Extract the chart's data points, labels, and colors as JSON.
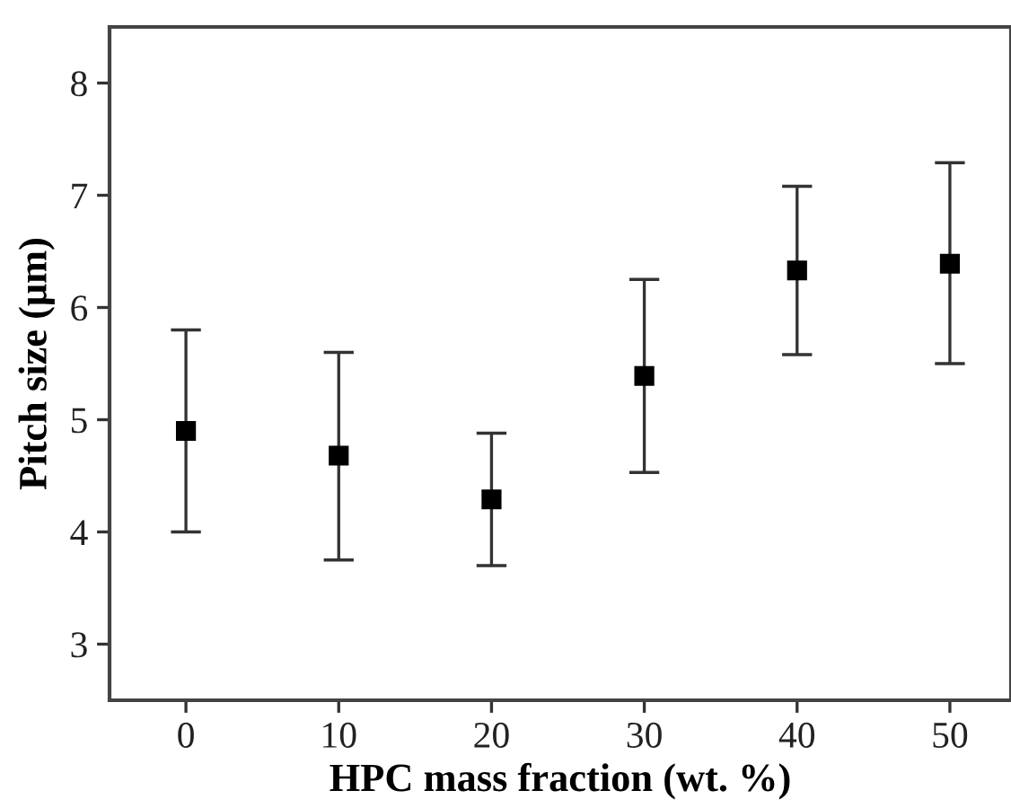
{
  "chart_data": {
    "type": "scatter",
    "xlabel": "HPC mass fraction (wt. %)",
    "ylabel": "Pitch size (μm)",
    "x": [
      0,
      10,
      20,
      30,
      40,
      50
    ],
    "values": [
      4.9,
      4.68,
      4.29,
      5.39,
      6.33,
      6.39
    ],
    "errors": [
      [
        4.0,
        5.8
      ],
      [
        3.75,
        5.6
      ],
      [
        3.7,
        4.88
      ],
      [
        4.53,
        6.25
      ],
      [
        5.58,
        7.08
      ],
      [
        5.5,
        7.29
      ]
    ],
    "color": "#000000",
    "marker": "square",
    "xlim": [
      -5,
      54
    ],
    "ylim": [
      2.5,
      8.5
    ],
    "xticks": [
      0,
      10,
      20,
      30,
      40,
      50
    ],
    "yticks": [
      3,
      4,
      5,
      6,
      7,
      8
    ],
    "grid": false,
    "legend": false
  }
}
